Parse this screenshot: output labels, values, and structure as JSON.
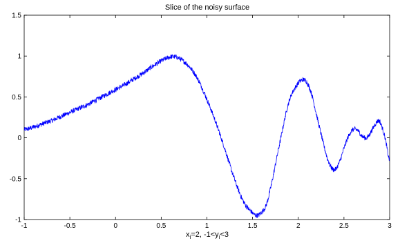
{
  "chart_data": {
    "type": "line",
    "title": "Slice of the noisy surface",
    "xlabel": {
      "a": "x",
      "a_sub": "i",
      "b": "=2, -1<y",
      "b_sub": "i",
      "c": "<3"
    },
    "ylabel": "",
    "xlim": [
      -1,
      3
    ],
    "ylim": [
      -1,
      1.5
    ],
    "xticks": [
      -1,
      -0.5,
      0,
      0.5,
      1,
      1.5,
      2,
      2.5,
      3
    ],
    "xtick_labels": [
      "-1",
      "-0.5",
      "0",
      "0.5",
      "1",
      "1.5",
      "2",
      "2.5",
      "3"
    ],
    "yticks": [
      -1,
      -0.5,
      0,
      0.5,
      1,
      1.5
    ],
    "ytick_labels": [
      "-1",
      "-0.5",
      "0",
      "0.5",
      "1",
      "1.5"
    ],
    "grid": false,
    "line_color": "#0000ff",
    "noise_amplitude": 0.03,
    "series": [
      {
        "x": [
          -1.0,
          -0.9,
          -0.8,
          -0.7,
          -0.6,
          -0.5,
          -0.4,
          -0.3,
          -0.2,
          -0.1,
          0.0,
          0.1,
          0.2,
          0.3,
          0.4,
          0.5,
          0.6,
          0.65,
          0.7,
          0.8,
          0.9,
          1.0,
          1.1,
          1.2,
          1.3,
          1.4,
          1.5,
          1.55,
          1.6,
          1.65,
          1.7,
          1.8,
          1.9,
          2.0,
          2.05,
          2.08,
          2.1,
          2.15,
          2.2,
          2.3,
          2.35,
          2.4,
          2.45,
          2.5,
          2.55,
          2.6,
          2.65,
          2.7,
          2.75,
          2.8,
          2.85,
          2.88,
          2.9,
          2.95,
          3.0
        ],
        "y": [
          0.1,
          0.13,
          0.17,
          0.21,
          0.26,
          0.31,
          0.36,
          0.41,
          0.47,
          0.53,
          0.59,
          0.65,
          0.72,
          0.79,
          0.87,
          0.94,
          0.99,
          0.99,
          0.97,
          0.88,
          0.72,
          0.47,
          0.18,
          -0.15,
          -0.5,
          -0.78,
          -0.92,
          -0.95,
          -0.91,
          -0.82,
          -0.6,
          -0.05,
          0.45,
          0.67,
          0.71,
          0.7,
          0.67,
          0.52,
          0.28,
          -0.18,
          -0.34,
          -0.39,
          -0.3,
          -0.13,
          0.02,
          0.1,
          0.09,
          0.02,
          0.0,
          0.08,
          0.18,
          0.21,
          0.18,
          0.0,
          -0.28
        ]
      }
    ]
  }
}
